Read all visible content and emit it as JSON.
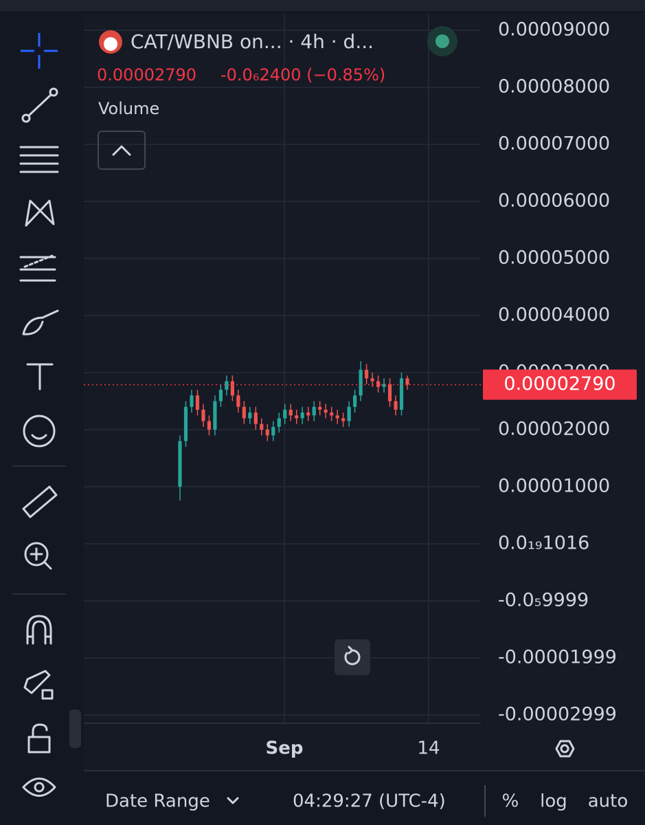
{
  "chart_data": {
    "type": "candlestick",
    "title": "CAT/WBNB on... · 4h · d...",
    "last_price": {
      "value": 2.79e-05,
      "label": "0.00002790"
    },
    "change_label": "-0.0₆2400 (−0.85%)",
    "indicator": "Volume",
    "up_color": "#26a69a",
    "down_color": "#ef5350",
    "open": [
      1e-05,
      1.8e-05,
      2.4e-05,
      2.6e-05,
      2.35e-05,
      2.15e-05,
      2e-05,
      2.5e-05,
      2.7e-05,
      2.85e-05,
      2.6e-05,
      2.4e-05,
      2.2e-05,
      2.3e-05,
      2.1e-05,
      2e-05,
      1.9e-05,
      2.05e-05,
      2.2e-05,
      2.35e-05,
      2.25e-05,
      2.2e-05,
      2.3e-05,
      2.25e-05,
      2.4e-05,
      2.35e-05,
      2.3e-05,
      2.25e-05,
      2.2e-05,
      2.15e-05,
      2.4e-05,
      2.6e-05,
      3.05e-05,
      2.9e-05,
      2.85e-05,
      2.75e-05,
      2.8e-05,
      2.5e-05,
      2.35e-05,
      2.9e-05
    ],
    "high": [
      1.9e-05,
      2.5e-05,
      2.7e-05,
      2.7e-05,
      2.45e-05,
      2.25e-05,
      2.6e-05,
      2.8e-05,
      2.95e-05,
      2.95e-05,
      2.7e-05,
      2.5e-05,
      2.4e-05,
      2.4e-05,
      2.2e-05,
      2.1e-05,
      2.15e-05,
      2.3e-05,
      2.45e-05,
      2.45e-05,
      2.35e-05,
      2.4e-05,
      2.4e-05,
      2.5e-05,
      2.5e-05,
      2.45e-05,
      2.4e-05,
      2.35e-05,
      2.3e-05,
      2.5e-05,
      2.7e-05,
      3.2e-05,
      3.15e-05,
      3e-05,
      2.95e-05,
      2.9e-05,
      2.9e-05,
      2.6e-05,
      3e-05,
      2.95e-05
    ],
    "low": [
      7.6e-06,
      1.7e-05,
      2.3e-05,
      2.25e-05,
      2.05e-05,
      1.9e-05,
      1.9e-05,
      2.4e-05,
      2.6e-05,
      2.5e-05,
      2.3e-05,
      2.1e-05,
      2.1e-05,
      2e-05,
      1.9e-05,
      1.8e-05,
      1.8e-05,
      1.95e-05,
      2.1e-05,
      2.15e-05,
      2.1e-05,
      2.1e-05,
      2.15e-05,
      2.15e-05,
      2.25e-05,
      2.2e-05,
      2.15e-05,
      2.1e-05,
      2.05e-05,
      2.05e-05,
      2.3e-05,
      2.5e-05,
      2.8e-05,
      2.75e-05,
      2.65e-05,
      2.65e-05,
      2.4e-05,
      2.25e-05,
      2.25e-05,
      2.7e-05
    ],
    "close": [
      1.8e-05,
      2.4e-05,
      2.6e-05,
      2.35e-05,
      2.15e-05,
      2e-05,
      2.5e-05,
      2.7e-05,
      2.85e-05,
      2.6e-05,
      2.4e-05,
      2.2e-05,
      2.3e-05,
      2.1e-05,
      2e-05,
      1.9e-05,
      2.05e-05,
      2.2e-05,
      2.35e-05,
      2.25e-05,
      2.2e-05,
      2.3e-05,
      2.25e-05,
      2.4e-05,
      2.35e-05,
      2.3e-05,
      2.25e-05,
      2.2e-05,
      2.15e-05,
      2.4e-05,
      2.6e-05,
      3.05e-05,
      2.9e-05,
      2.85e-05,
      2.75e-05,
      2.8e-05,
      2.5e-05,
      2.35e-05,
      2.9e-05,
      2.79e-05
    ],
    "ylim": [
      -3.12e-05,
      9.289e-05
    ],
    "yticks": [
      {
        "value": 9e-05,
        "label": "0.00009000"
      },
      {
        "value": 8e-05,
        "label": "0.00008000"
      },
      {
        "value": 7e-05,
        "label": "0.00007000"
      },
      {
        "value": 6e-05,
        "label": "0.00006000"
      },
      {
        "value": 5e-05,
        "label": "0.00005000"
      },
      {
        "value": 4e-05,
        "label": "0.00004000"
      },
      {
        "value": 3e-05,
        "label": "0.00003000"
      },
      {
        "value": 2e-05,
        "label": "0.00002000"
      },
      {
        "value": 1e-05,
        "label": "0.00001000"
      },
      {
        "value": 1.016e-20,
        "label": "0.0₁₉1016"
      },
      {
        "value": -9.999e-06,
        "label": "-0.0₅9999"
      },
      {
        "value": -1.999e-05,
        "label": "-0.00001999"
      },
      {
        "value": -2.999e-05,
        "label": "-0.00002999"
      }
    ],
    "x_labels": [
      "Sep",
      "14"
    ],
    "grid": true
  },
  "footer": {
    "date_range": "Date Range",
    "time": "04:29:27 (UTC-4)",
    "buttons": [
      "%",
      "log",
      "auto"
    ]
  }
}
